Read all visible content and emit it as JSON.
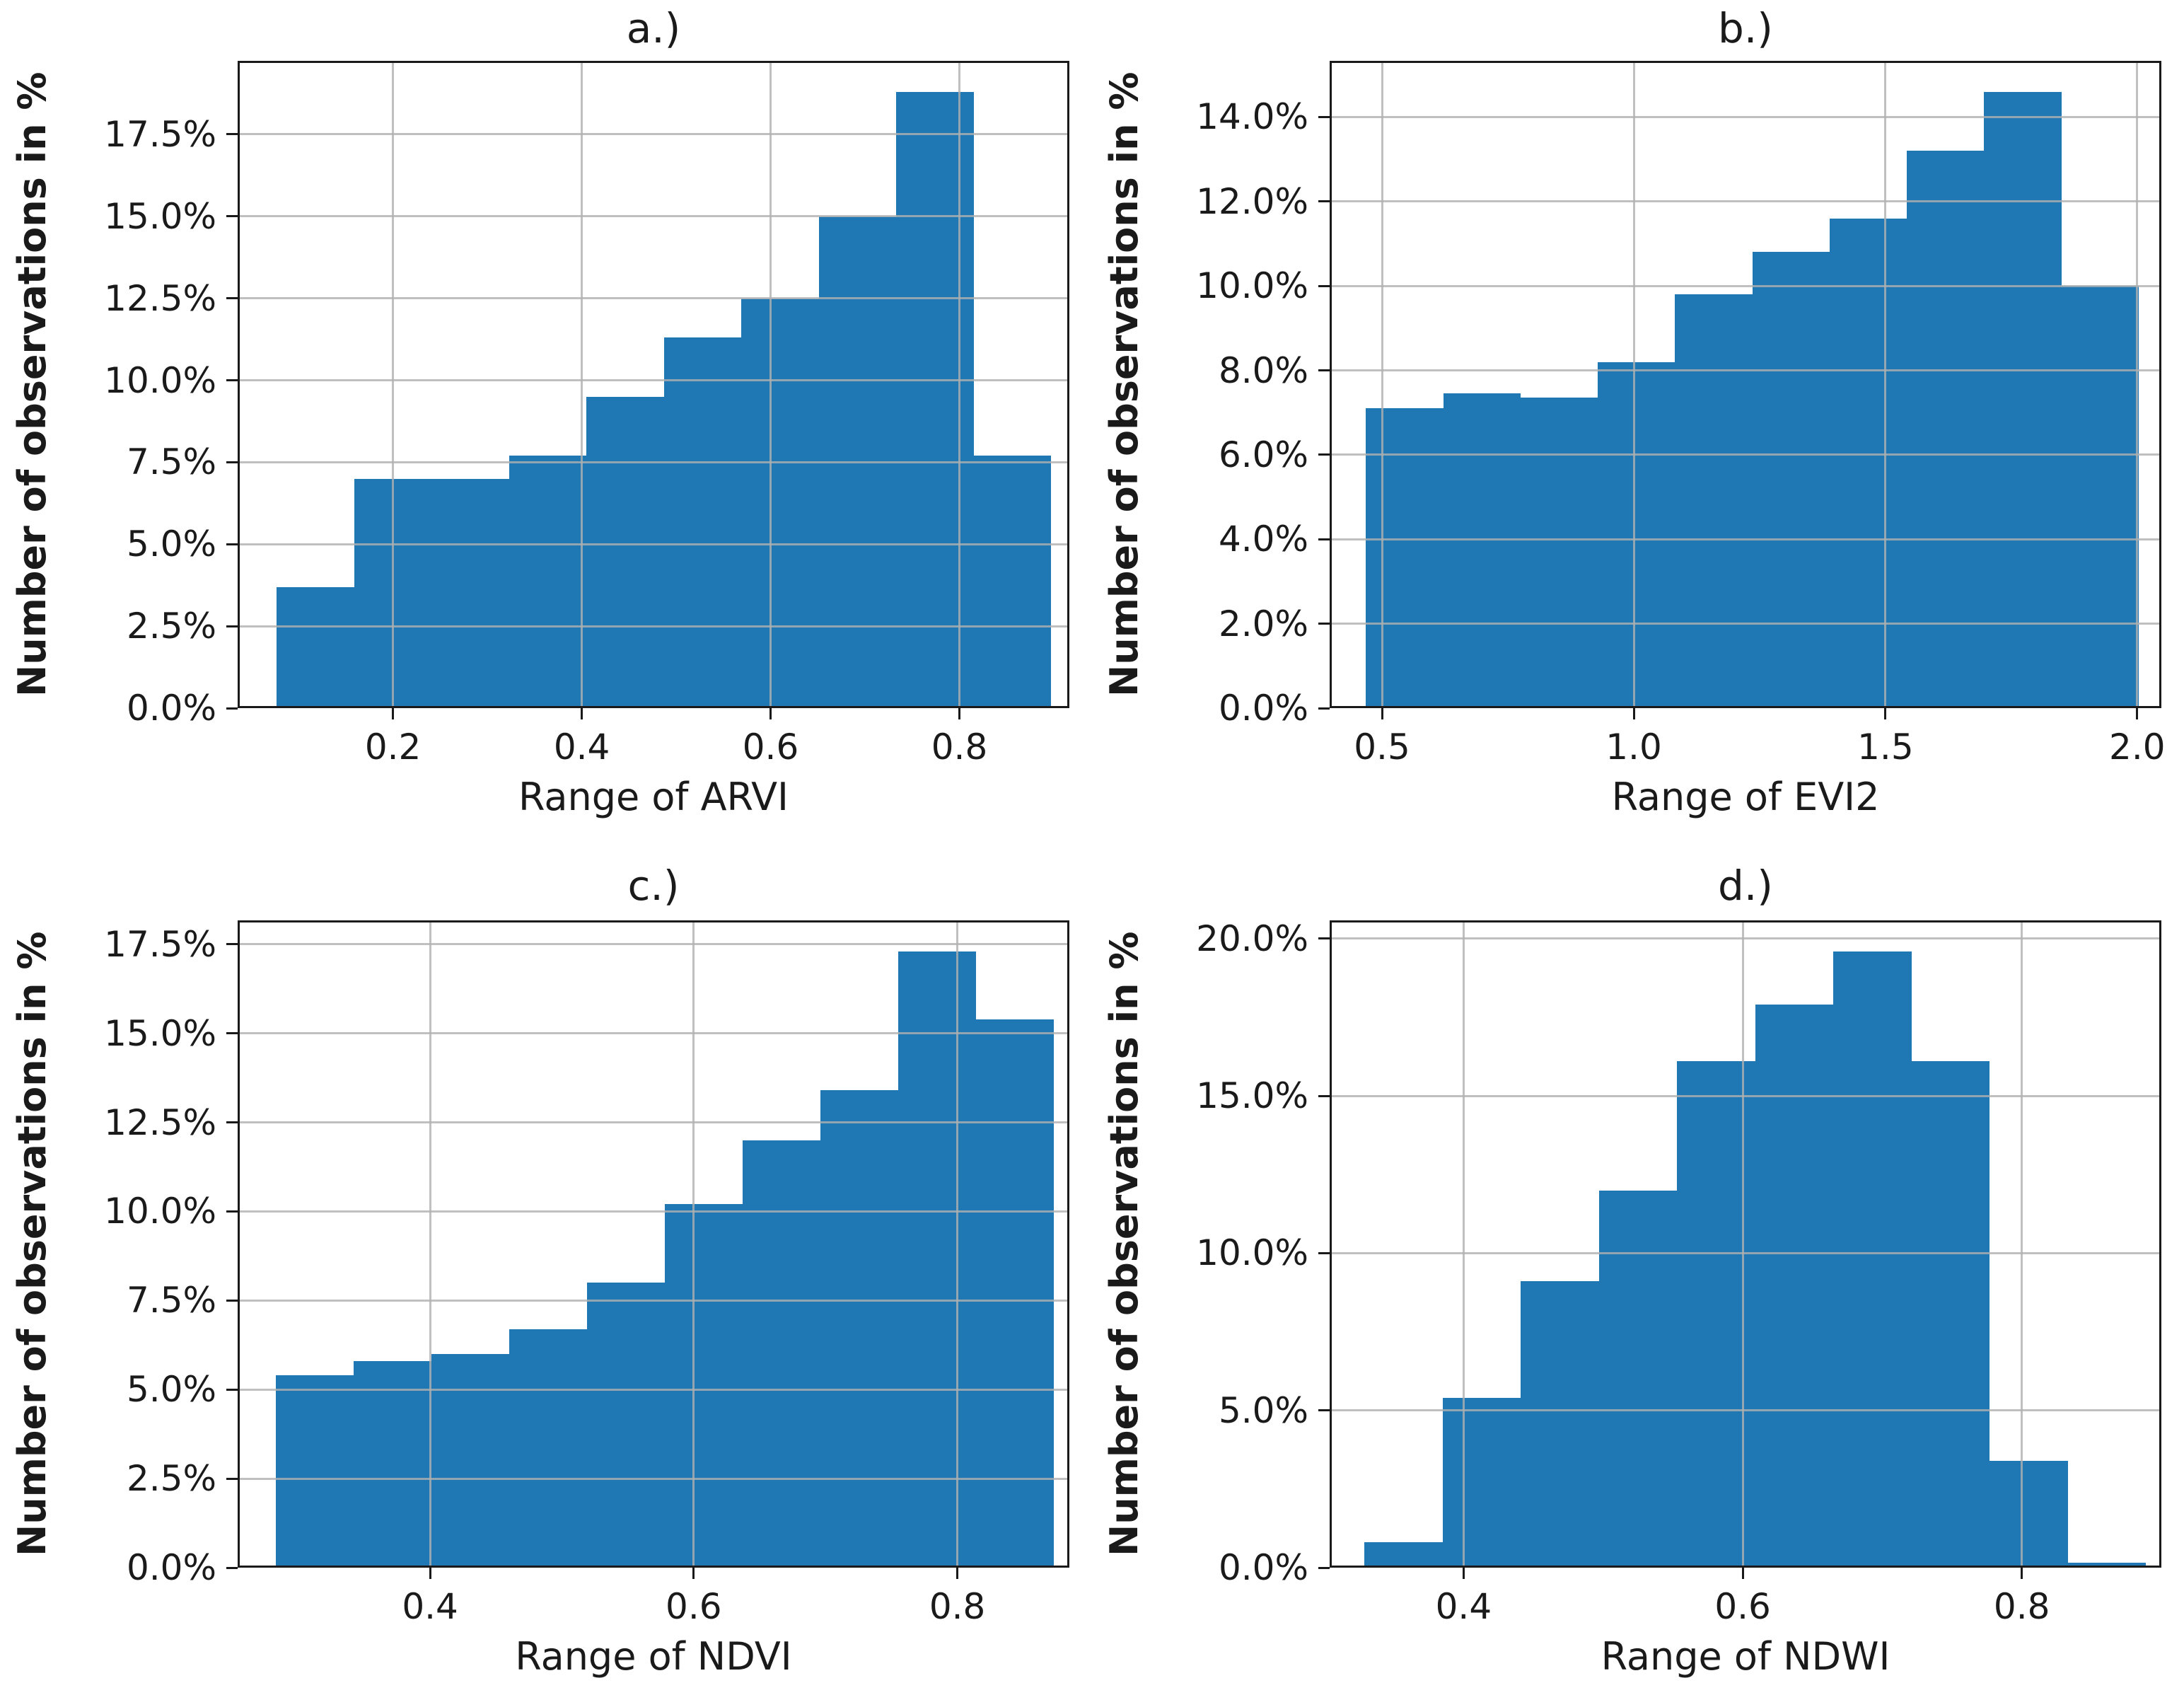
{
  "figure": {
    "background": "#ffffff",
    "bar_color": "#1f77b4",
    "grid_color": "#b0b0b0",
    "spine_color": "#1a1a1a",
    "text_color": "#1a1a1a"
  },
  "chart_data": [
    {
      "type": "bar",
      "subtype": "histogram",
      "title": "a.)",
      "xlabel": "Range of ARVI",
      "ylabel": "Number of observations in %",
      "legend": "none",
      "grid": true,
      "bin_start": 0.077,
      "bin_width": 0.082,
      "values_pct": [
        3.7,
        7.0,
        7.0,
        7.7,
        9.5,
        11.3,
        12.5,
        15.0,
        18.8,
        7.7
      ],
      "xlim": [
        0.0355,
        0.9165
      ],
      "ylim": [
        0,
        19.74
      ],
      "xtick_values": [
        0.2,
        0.4,
        0.6,
        0.8
      ],
      "xtick_labels": [
        "0.2",
        "0.4",
        "0.6",
        "0.8"
      ],
      "ytick_values": [
        0,
        2.5,
        5.0,
        7.5,
        10.0,
        12.5,
        15.0,
        17.5
      ],
      "ytick_labels": [
        "0.0%",
        "2.5%",
        "5.0%",
        "7.5%",
        "10.0%",
        "12.5%",
        "15.0%",
        "17.5%"
      ]
    },
    {
      "type": "bar",
      "subtype": "histogram",
      "title": "b.)",
      "xlabel": "Range of EVI2",
      "ylabel": "Number of observations in %",
      "legend": "none",
      "grid": true,
      "bin_start": 0.468,
      "bin_width": 0.1535,
      "values_pct": [
        7.1,
        7.45,
        7.35,
        8.2,
        9.8,
        10.8,
        11.6,
        13.2,
        14.6,
        10.0
      ],
      "xlim": [
        0.396,
        2.048
      ],
      "ylim": [
        0,
        15.33
      ],
      "xtick_values": [
        0.5,
        1.0,
        1.5,
        2.0
      ],
      "xtick_labels": [
        "0.5",
        "1.0",
        "1.5",
        "2.0"
      ],
      "ytick_values": [
        0,
        2,
        4,
        6,
        8,
        10,
        12,
        14
      ],
      "ytick_labels": [
        "0.0%",
        "2.0%",
        "4.0%",
        "6.0%",
        "8.0%",
        "10.0%",
        "12.0%",
        "14.0%"
      ]
    },
    {
      "type": "bar",
      "subtype": "histogram",
      "title": "c.)",
      "xlabel": "Range of NDVI",
      "ylabel": "Number of observations in %",
      "legend": "none",
      "grid": true,
      "bin_start": 0.283,
      "bin_width": 0.059,
      "values_pct": [
        5.4,
        5.8,
        6.0,
        6.7,
        8.0,
        10.2,
        12.0,
        13.4,
        17.3,
        15.4
      ],
      "xlim": [
        0.254,
        0.885
      ],
      "ylim": [
        0,
        18.17
      ],
      "xtick_values": [
        0.4,
        0.6,
        0.8
      ],
      "xtick_labels": [
        "0.4",
        "0.6",
        "0.8"
      ],
      "ytick_values": [
        0,
        2.5,
        5.0,
        7.5,
        10.0,
        12.5,
        15.0,
        17.5
      ],
      "ytick_labels": [
        "0.0%",
        "2.5%",
        "5.0%",
        "7.5%",
        "10.0%",
        "12.5%",
        "15.0%",
        "17.5%"
      ]
    },
    {
      "type": "bar",
      "subtype": "histogram",
      "title": "d.)",
      "xlabel": "Range of NDWI",
      "ylabel": "Number of observations in %",
      "legend": "none",
      "grid": true,
      "bin_start": 0.329,
      "bin_width": 0.056,
      "values_pct": [
        0.8,
        5.4,
        9.1,
        12.0,
        16.1,
        17.9,
        19.6,
        16.1,
        3.4,
        0.15
      ],
      "xlim": [
        0.304,
        0.9
      ],
      "ylim": [
        0,
        20.58
      ],
      "xtick_values": [
        0.4,
        0.6,
        0.8
      ],
      "xtick_labels": [
        "0.4",
        "0.6",
        "0.8"
      ],
      "ytick_values": [
        0,
        5,
        10,
        15,
        20
      ],
      "ytick_labels": [
        "0.0%",
        "5.0%",
        "10.0%",
        "15.0%",
        "20.0%"
      ]
    }
  ]
}
